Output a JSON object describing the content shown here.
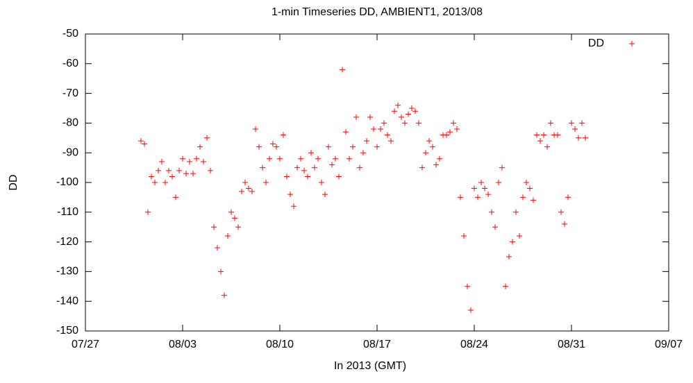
{
  "chart_data": {
    "type": "scatter",
    "title": "1-min Timeseries DD, AMBIENT1, 2013/08",
    "x_label": "In 2013 (GMT)",
    "y_label": "DD",
    "xlim": [
      0,
      42
    ],
    "xticks": [
      {
        "value": 0,
        "label": "07/27"
      },
      {
        "value": 7,
        "label": "08/03"
      },
      {
        "value": 14,
        "label": "08/10"
      },
      {
        "value": 21,
        "label": "08/17"
      },
      {
        "value": 28,
        "label": "08/24"
      },
      {
        "value": 35,
        "label": "08/31"
      },
      {
        "value": 42,
        "label": "09/07"
      }
    ],
    "ylim": [
      -150,
      -50
    ],
    "yticks": [
      -150,
      -140,
      -130,
      -120,
      -110,
      -100,
      -90,
      -80,
      -70,
      -60,
      -50
    ],
    "legend": "upper right",
    "series": [
      {
        "name": "DD",
        "color": "#ff0000",
        "x": [
          4,
          4.25,
          4.5,
          4.75,
          5,
          5.25,
          5.5,
          5.75,
          6,
          6.25,
          6.5,
          6.75,
          7,
          7.25,
          7.5,
          7.75,
          8,
          8.25,
          8.5,
          8.75,
          9,
          9.25,
          9.5,
          9.75,
          10,
          10.25,
          10.5,
          10.75,
          11,
          11.25,
          11.5,
          11.75,
          12,
          12.25,
          12.5,
          12.75,
          13,
          13.25,
          13.5,
          13.75,
          14,
          14.25,
          14.5,
          14.75,
          15,
          15.25,
          15.5,
          15.75,
          16,
          16.25,
          16.5,
          16.75,
          17,
          17.25,
          17.5,
          17.75,
          18,
          18.25,
          18.5,
          18.75,
          19,
          19.25,
          19.5,
          19.75,
          20,
          20.25,
          20.5,
          20.75,
          21,
          21.25,
          21.5,
          21.75,
          22,
          22.25,
          22.5,
          22.75,
          23,
          23.25,
          23.5,
          23.75,
          24,
          24.25,
          24.5,
          24.75,
          25,
          25.25,
          25.5,
          25.75,
          26,
          26.25,
          26.5,
          26.75,
          27,
          27.25,
          27.5,
          27.75,
          28,
          28.25,
          28.5,
          28.75,
          29,
          29.25,
          29.5,
          29.75,
          30,
          30.25,
          30.5,
          30.75,
          31,
          31.25,
          31.5,
          31.75,
          32,
          32.25,
          32.5,
          32.75,
          33,
          33.25,
          33.5,
          33.75,
          34,
          34.25,
          34.5,
          34.75,
          35,
          35.25,
          35.5,
          35.75,
          36
        ],
        "values": [
          -86,
          -87,
          -110,
          -98,
          -100,
          -96,
          -93,
          -100,
          -96,
          -98,
          -105,
          -96,
          -92,
          -97,
          -93,
          -97,
          -92,
          -88,
          -93,
          -85,
          -96,
          -115,
          -122,
          -130,
          -138,
          -118,
          -110,
          -112,
          -115,
          -103,
          -100,
          -102,
          -103,
          -82,
          -88,
          -95,
          -100,
          -92,
          -87,
          -88,
          -92,
          -84,
          -98,
          -104,
          -108,
          -95,
          -92,
          -96,
          -98,
          -90,
          -95,
          -92,
          -100,
          -104,
          -88,
          -94,
          -92,
          -98,
          -62,
          -83,
          -92,
          -88,
          -78,
          -95,
          -90,
          -86,
          -78,
          -82,
          -88,
          -82,
          -80,
          -84,
          -86,
          -76,
          -74,
          -78,
          -80,
          -77,
          -75,
          -76,
          -80,
          -95,
          -90,
          -86,
          -88,
          -94,
          -92,
          -84,
          -84,
          -83,
          -80,
          -82,
          -105,
          -118,
          -135,
          -143,
          -102,
          -105,
          -100,
          -102,
          -104,
          -110,
          -115,
          -100,
          -95,
          -135,
          -125,
          -120,
          -110,
          -118,
          -105,
          -100,
          -102,
          -106,
          -84,
          -86,
          -84,
          -88,
          -80,
          -84,
          -84,
          -110,
          -114,
          -105,
          -80,
          -82,
          -85,
          -80,
          -85
        ]
      }
    ]
  }
}
